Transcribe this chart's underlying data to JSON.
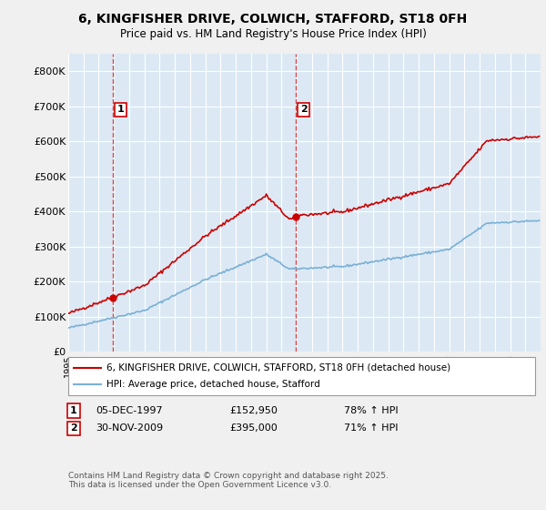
{
  "title": "6, KINGFISHER DRIVE, COLWICH, STAFFORD, ST18 0FH",
  "subtitle": "Price paid vs. HM Land Registry's House Price Index (HPI)",
  "legend_line1": "6, KINGFISHER DRIVE, COLWICH, STAFFORD, ST18 0FH (detached house)",
  "legend_line2": "HPI: Average price, detached house, Stafford",
  "purchase1_date": "05-DEC-1997",
  "purchase1_price": 152950,
  "purchase1_hpi": "78% ↑ HPI",
  "purchase2_date": "30-NOV-2009",
  "purchase2_price": 395000,
  "purchase2_hpi": "71% ↑ HPI",
  "footer": "Contains HM Land Registry data © Crown copyright and database right 2025.\nThis data is licensed under the Open Government Licence v3.0.",
  "house_color": "#cc0000",
  "hpi_color": "#7ab0d4",
  "marker1_year": 1997.92,
  "marker2_year": 2009.92,
  "ylim": [
    0,
    850000
  ],
  "yticks": [
    0,
    100000,
    200000,
    300000,
    400000,
    500000,
    600000,
    700000,
    800000
  ],
  "ytick_labels": [
    "£0",
    "£100K",
    "£200K",
    "£300K",
    "£400K",
    "£500K",
    "£600K",
    "£700K",
    "£800K"
  ],
  "plot_bg_color": "#dce9f5",
  "fig_bg_color": "#f0f0f0"
}
